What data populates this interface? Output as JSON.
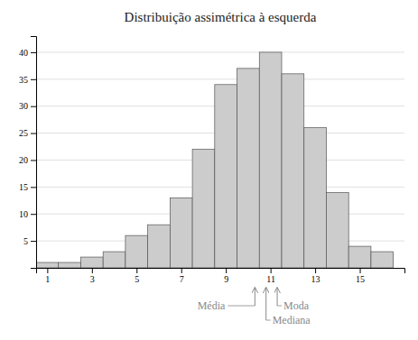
{
  "chart_data": {
    "type": "bar",
    "title": "Distribuição assimétrica à esquerda",
    "x": [
      1,
      2,
      3,
      4,
      5,
      6,
      7,
      8,
      9,
      10,
      11,
      12,
      13,
      14,
      15,
      16
    ],
    "values": [
      1,
      1,
      2,
      3,
      6,
      8,
      13,
      22,
      34,
      37,
      40,
      36,
      26,
      14,
      4,
      3
    ],
    "color": "#cccccc",
    "xlim": [
      0.5,
      17.0
    ],
    "xticks": [
      1,
      3,
      5,
      7,
      9,
      11,
      13,
      15
    ],
    "ylim": [
      0,
      43
    ],
    "yticks": [
      5,
      10,
      15,
      20,
      25,
      30,
      35,
      40
    ],
    "grid": true,
    "annotations": [
      {
        "text": "Média",
        "x": 10.3
      },
      {
        "text": "Mediana",
        "x": 10.8
      },
      {
        "text": "Moda",
        "x": 11.3
      }
    ]
  }
}
